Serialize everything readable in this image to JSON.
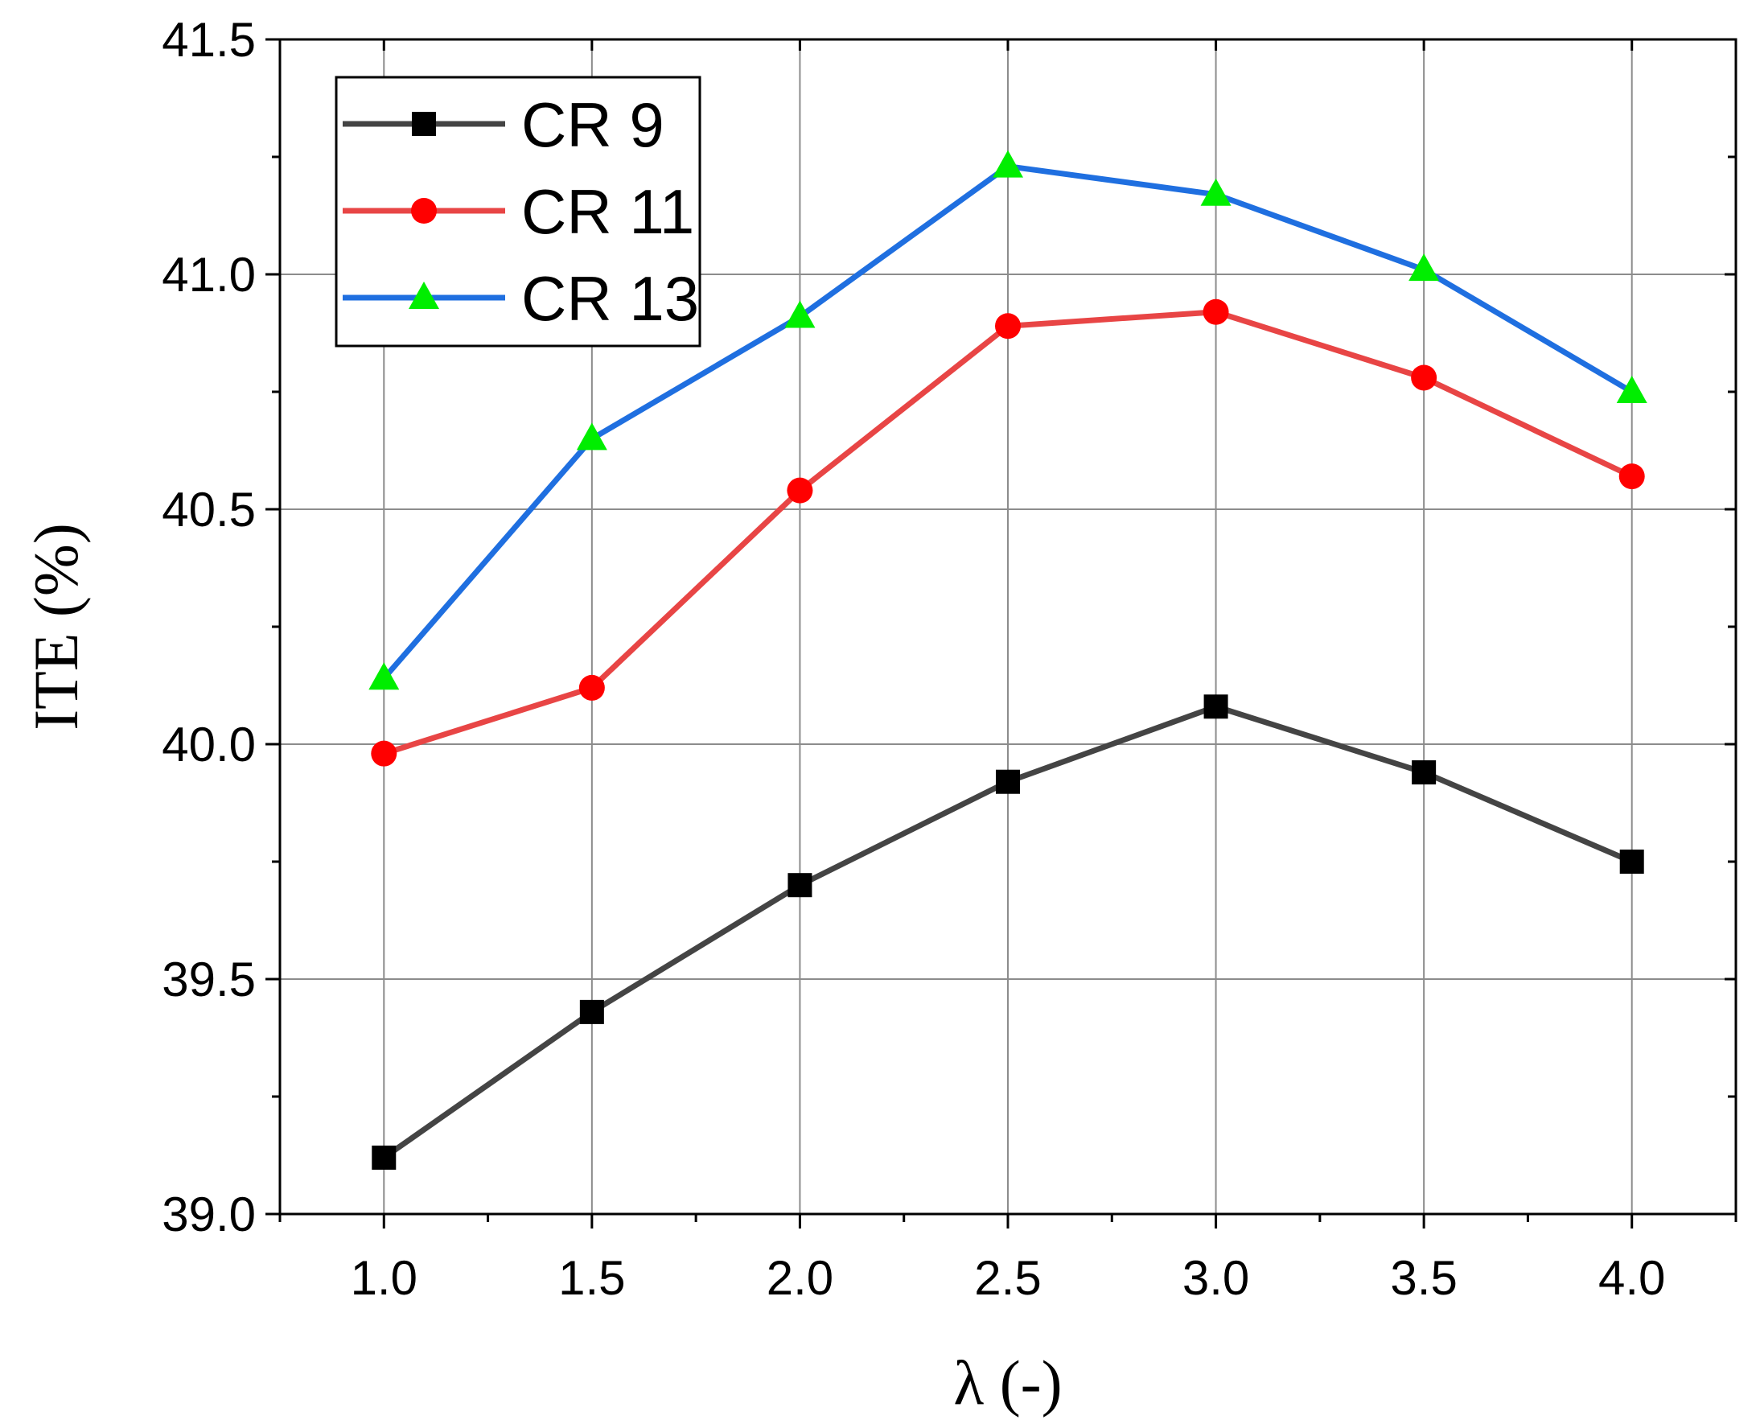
{
  "chart_data": {
    "type": "line",
    "title": "",
    "xlabel": "λ (-)",
    "ylabel": "ITE (%)",
    "xlim": [
      0.75,
      4.25
    ],
    "ylim": [
      39.0,
      41.5
    ],
    "x": [
      1.0,
      1.5,
      2.0,
      2.5,
      3.0,
      3.5,
      4.0
    ],
    "x_tick_labels": [
      "1.0",
      "1.5",
      "2.0",
      "2.5",
      "3.0",
      "3.5",
      "4.0"
    ],
    "y_ticks": [
      39.0,
      39.5,
      40.0,
      40.5,
      41.0,
      41.5
    ],
    "y_tick_labels": [
      "39.0",
      "39.5",
      "40.0",
      "40.5",
      "41.0",
      "41.5"
    ],
    "grid": true,
    "legend_position": "top-left",
    "series": [
      {
        "name": "CR 9",
        "line_color": "#444444",
        "marker_color": "#000000",
        "marker": "square",
        "values": [
          39.12,
          39.43,
          39.7,
          39.92,
          40.08,
          39.94,
          39.75
        ]
      },
      {
        "name": "CR 11",
        "line_color": "#e84545",
        "marker_color": "#ff0000",
        "marker": "circle",
        "values": [
          39.98,
          40.12,
          40.54,
          40.89,
          40.92,
          40.78,
          40.57
        ]
      },
      {
        "name": "CR 13",
        "line_color": "#1f6fe0",
        "marker_color": "#00ee00",
        "marker": "triangle",
        "values": [
          40.14,
          40.65,
          40.91,
          41.23,
          41.17,
          41.01,
          40.75
        ]
      }
    ]
  }
}
